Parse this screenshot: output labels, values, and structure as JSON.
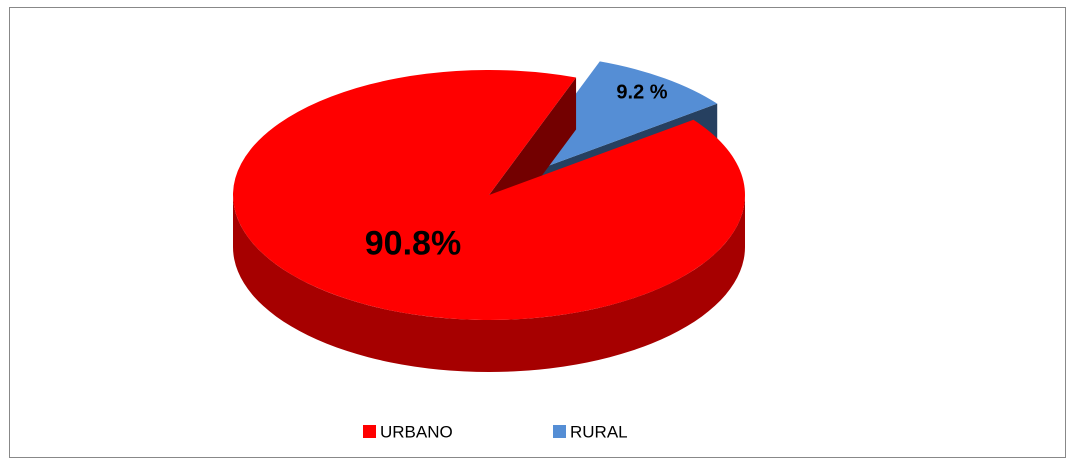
{
  "chart_data": {
    "type": "pie3d",
    "categories": [
      "URBANO",
      "RURAL"
    ],
    "values": [
      90.8,
      9.2
    ],
    "value_labels": [
      "90.8%",
      "9.2 %"
    ],
    "colors": [
      "#ff0000",
      "#558ed5"
    ],
    "legend": "bottom"
  }
}
